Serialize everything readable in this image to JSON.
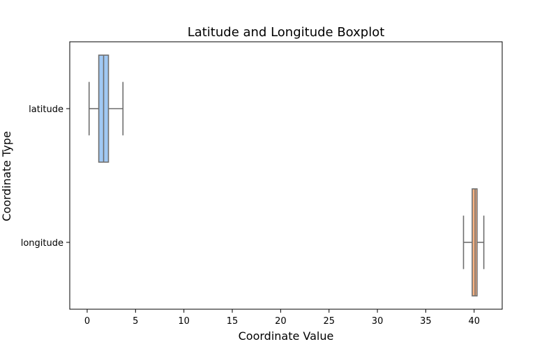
{
  "chart_data": {
    "type": "boxplot",
    "title": "Latitude and Longitude Boxplot",
    "xlabel": "Coordinate Value",
    "ylabel": "Coordinate Type",
    "xlim": [
      -1.8,
      42.9
    ],
    "x_ticks": [
      0,
      5,
      10,
      15,
      20,
      25,
      30,
      35,
      40
    ],
    "orientation": "horizontal",
    "grid": false,
    "categories": [
      "latitude",
      "longitude"
    ],
    "boxes": [
      {
        "category": "latitude",
        "whisker_low": 0.2,
        "q1": 1.2,
        "median": 1.7,
        "q3": 2.2,
        "whisker_high": 3.7,
        "color": "#a1c9f4"
      },
      {
        "category": "longitude",
        "whisker_low": 38.9,
        "q1": 39.8,
        "median": 40.1,
        "q3": 40.3,
        "whisker_high": 41.0,
        "color": "#ffb482"
      }
    ],
    "line_color": "#6e6e6e"
  }
}
